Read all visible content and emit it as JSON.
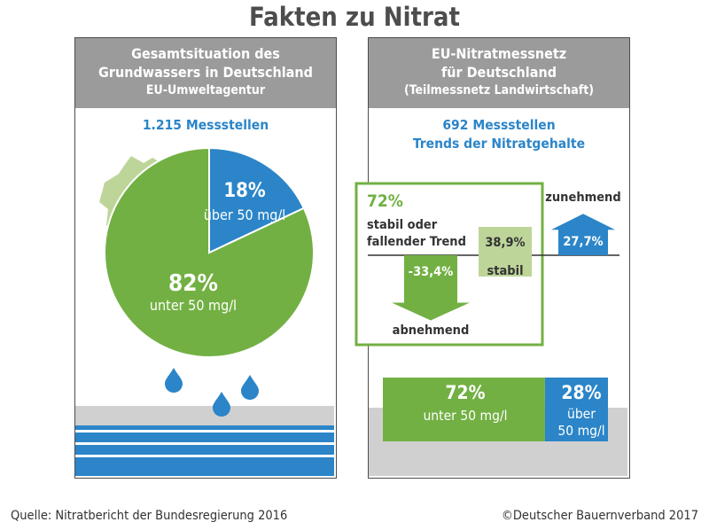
{
  "title": "Fakten zu Nitrat",
  "left_panel": {
    "head_line1": "Gesamtsituation des",
    "head_line2": "Grundwassers in Deutschland",
    "head_line3": "EU-Umweltagentur",
    "stations": "1.215 Messstellen",
    "slice_over_pct": "18%",
    "slice_over_label": "über 50 mg/l",
    "slice_under_pct": "82%",
    "slice_under_label": "unter 50 mg/l"
  },
  "right_panel": {
    "head_line1": "EU-Nitratmessnetz",
    "head_line2": "für Deutschland",
    "head_line3": "(Teilmessnetz Landwirtschaft)",
    "stations": "692 Messstellen",
    "trend_title": "Trends der Nitratgehalte",
    "box_pct": "72%",
    "box_line1": "stabil oder",
    "box_line2": "fallender Trend",
    "decreasing_label": "abnehmend",
    "stable_label": "stabil",
    "increasing_label": "zunehmend",
    "decreasing_value": "-33,4%",
    "stable_value": "38,9%",
    "increasing_value": "27,7%",
    "under_pct": "72%",
    "under_label": "unter 50 mg/l",
    "over_pct": "28%",
    "over_label1": "über",
    "over_label2": "50 mg/l"
  },
  "footer": {
    "source": "Quelle: Nitratbericht der Bundesregierung 2016",
    "copyright": "©Deutscher Bauernverband 2017"
  },
  "colors": {
    "green": "#72b043",
    "blue": "#2b85c8",
    "light_green": "#bed59a",
    "gray": "#9b9b9b"
  },
  "chart_data": [
    {
      "type": "pie",
      "title": "Gesamtsituation des Grundwassers in Deutschland",
      "categories": [
        "über 50 mg/l",
        "unter 50 mg/l"
      ],
      "values": [
        18,
        82
      ],
      "unit": "%"
    },
    {
      "type": "bar",
      "title": "Trends der Nitratgehalte",
      "categories": [
        "abnehmend",
        "stabil",
        "zunehmend"
      ],
      "values": [
        -33.4,
        38.9,
        27.7
      ],
      "unit": "%"
    },
    {
      "type": "bar",
      "title": "EU-Nitratmessnetz für Deutschland",
      "categories": [
        "unter 50 mg/l",
        "über 50 mg/l"
      ],
      "values": [
        72,
        28
      ],
      "unit": "%"
    }
  ]
}
